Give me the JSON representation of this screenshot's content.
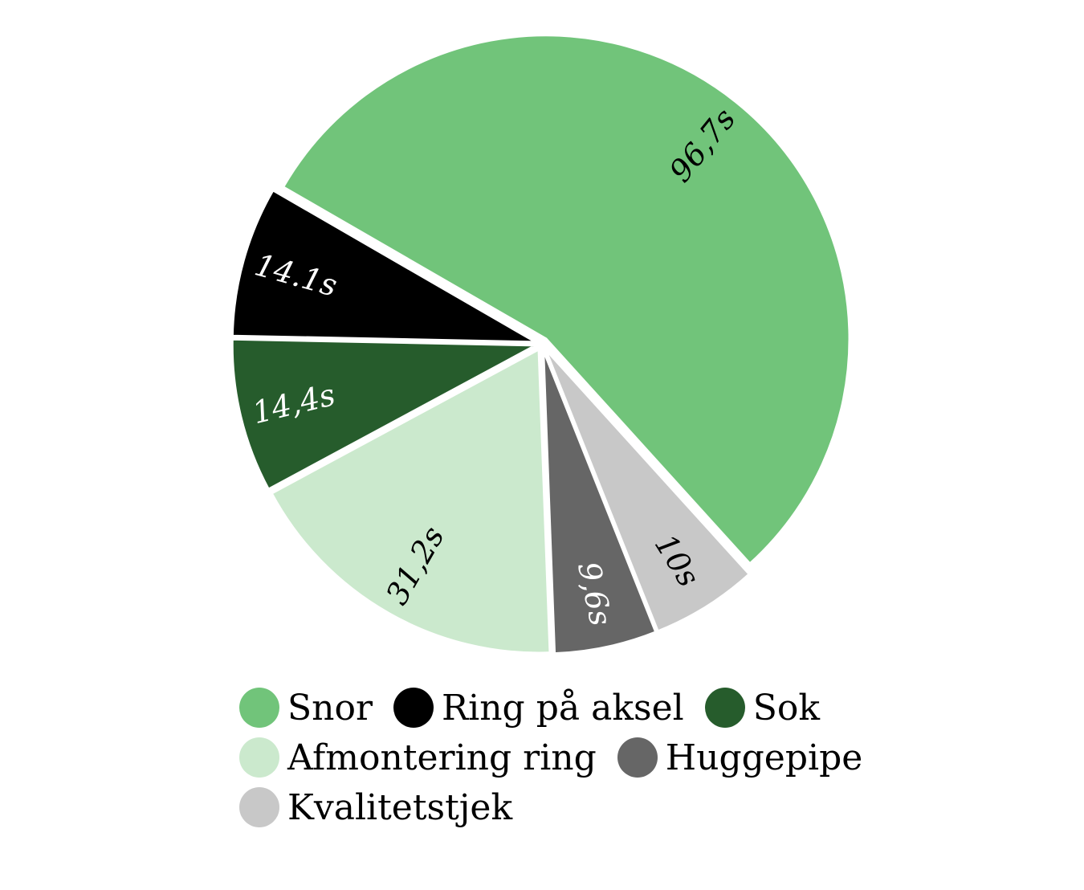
{
  "chart_data": {
    "type": "pie",
    "title": "",
    "slices": [
      {
        "name": "Snor",
        "value": 96.7,
        "label": "96,7s",
        "color": "#71c47a",
        "label_color": "#000000"
      },
      {
        "name": "Kvalitetstjek",
        "value": 10,
        "label": "10s",
        "color": "#c8c8c8",
        "label_color": "#000000"
      },
      {
        "name": "Huggepipe",
        "value": 9.6,
        "label": "9,6s",
        "color": "#666666",
        "label_color": "#ffffff"
      },
      {
        "name": "Afmontering ring",
        "value": 31.2,
        "label": "31,2s",
        "color": "#cbe9cd",
        "label_color": "#000000"
      },
      {
        "name": "Sok",
        "value": 14.4,
        "label": "14,4s",
        "color": "#265c2c",
        "label_color": "#ffffff"
      },
      {
        "name": "Ring på aksel",
        "value": 14.1,
        "label": "14.1s",
        "color": "#000000",
        "label_color": "#ffffff"
      }
    ],
    "legend": {
      "placement": "bottom",
      "rows": [
        [
          {
            "label": "Snor",
            "color": "#71c47a"
          },
          {
            "label": "Ring på aksel",
            "color": "#000000"
          },
          {
            "label": "Sok",
            "color": "#265c2c"
          }
        ],
        [
          {
            "label": "Afmontering ring",
            "color": "#cbe9cd"
          },
          {
            "label": "Huggepipe",
            "color": "#666666"
          }
        ],
        [
          {
            "label": "Kvalitetstjek",
            "color": "#c8c8c8"
          }
        ]
      ]
    }
  }
}
